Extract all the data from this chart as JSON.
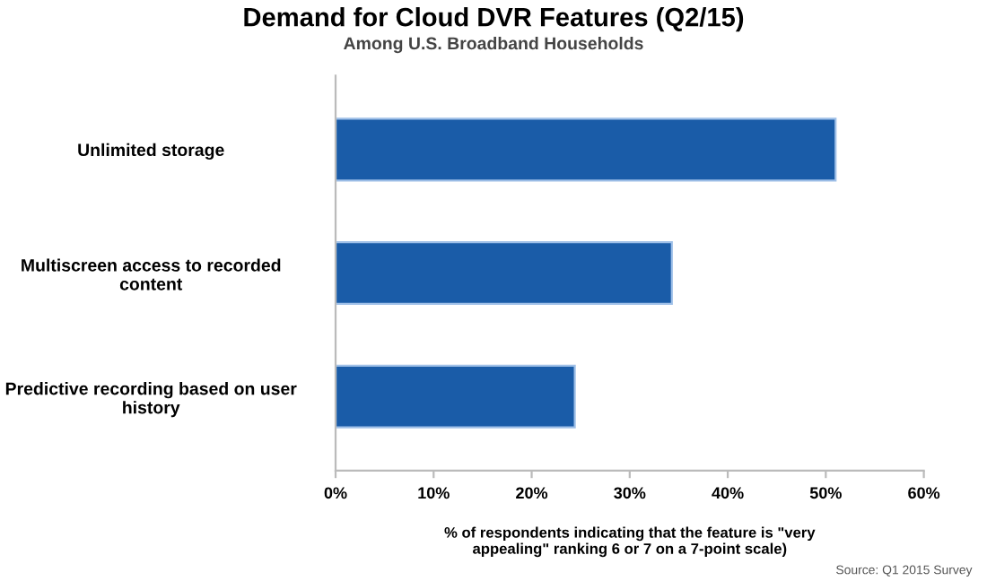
{
  "chart_data": {
    "type": "bar",
    "orientation": "horizontal",
    "title": "Demand for Cloud DVR Features (Q2/15)",
    "subtitle": "Among U.S. Broadband Households",
    "categories": [
      "Unlimited storage",
      "Multiscreen access to recorded\ncontent",
      "Predictive recording based on user\nhistory"
    ],
    "values": [
      51.0,
      34.3,
      24.4
    ],
    "color": "#1a5ca8",
    "xlim": [
      0,
      60
    ],
    "xticks": [
      {
        "value": 0,
        "label": "0%"
      },
      {
        "value": 10,
        "label": "10%"
      },
      {
        "value": 20,
        "label": "20%"
      },
      {
        "value": 30,
        "label": "30%"
      },
      {
        "value": 40,
        "label": "40%"
      },
      {
        "value": 50,
        "label": "50%"
      },
      {
        "value": 60,
        "label": "60%"
      }
    ],
    "xlabel": "% of respondents indicating that the feature is \"very\nappealing\" ranking 6 or 7 on a 7-point scale)",
    "annotations": [
      "Source: Q1 2015 Survey"
    ],
    "grid": false,
    "legend": false
  }
}
